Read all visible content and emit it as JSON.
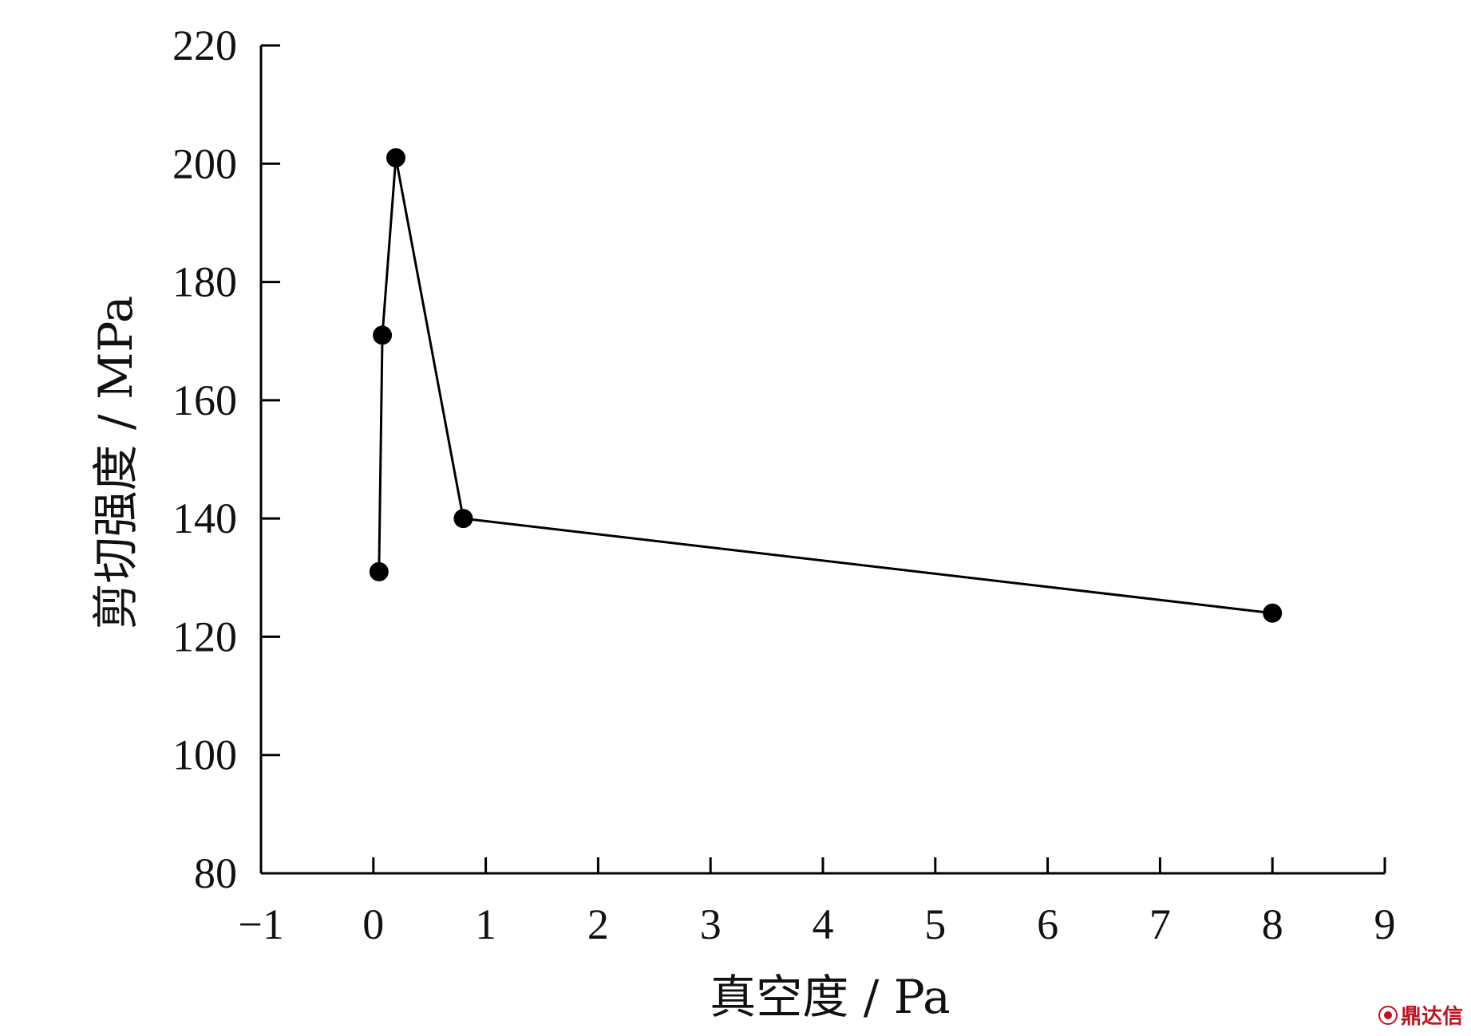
{
  "chart_data": {
    "type": "line",
    "xlabel": "真空度 / Pa",
    "ylabel": "剪切强度 / MPa",
    "xlim": [
      -1,
      9
    ],
    "ylim": [
      80,
      220
    ],
    "x_ticks": [
      -1,
      0,
      1,
      2,
      3,
      4,
      5,
      6,
      7,
      8,
      9
    ],
    "x_tick_labels": [
      "−1",
      "0",
      "1",
      "2",
      "3",
      "4",
      "5",
      "6",
      "7",
      "8",
      "9"
    ],
    "y_ticks": [
      80,
      100,
      120,
      140,
      160,
      180,
      200,
      220
    ],
    "y_tick_labels": [
      "80",
      "100",
      "120",
      "140",
      "160",
      "180",
      "200",
      "220"
    ],
    "grid": false,
    "marker": "filled-circle",
    "line_color": "#000000",
    "series": [
      {
        "x": [
          0.05,
          0.08,
          0.2,
          0.8,
          8
        ],
        "y": [
          131,
          171,
          201,
          140,
          124
        ]
      }
    ]
  },
  "watermark": {
    "text": "鼎达信",
    "icon": "dingdaxin-logo-icon",
    "color": "#c1121f"
  }
}
